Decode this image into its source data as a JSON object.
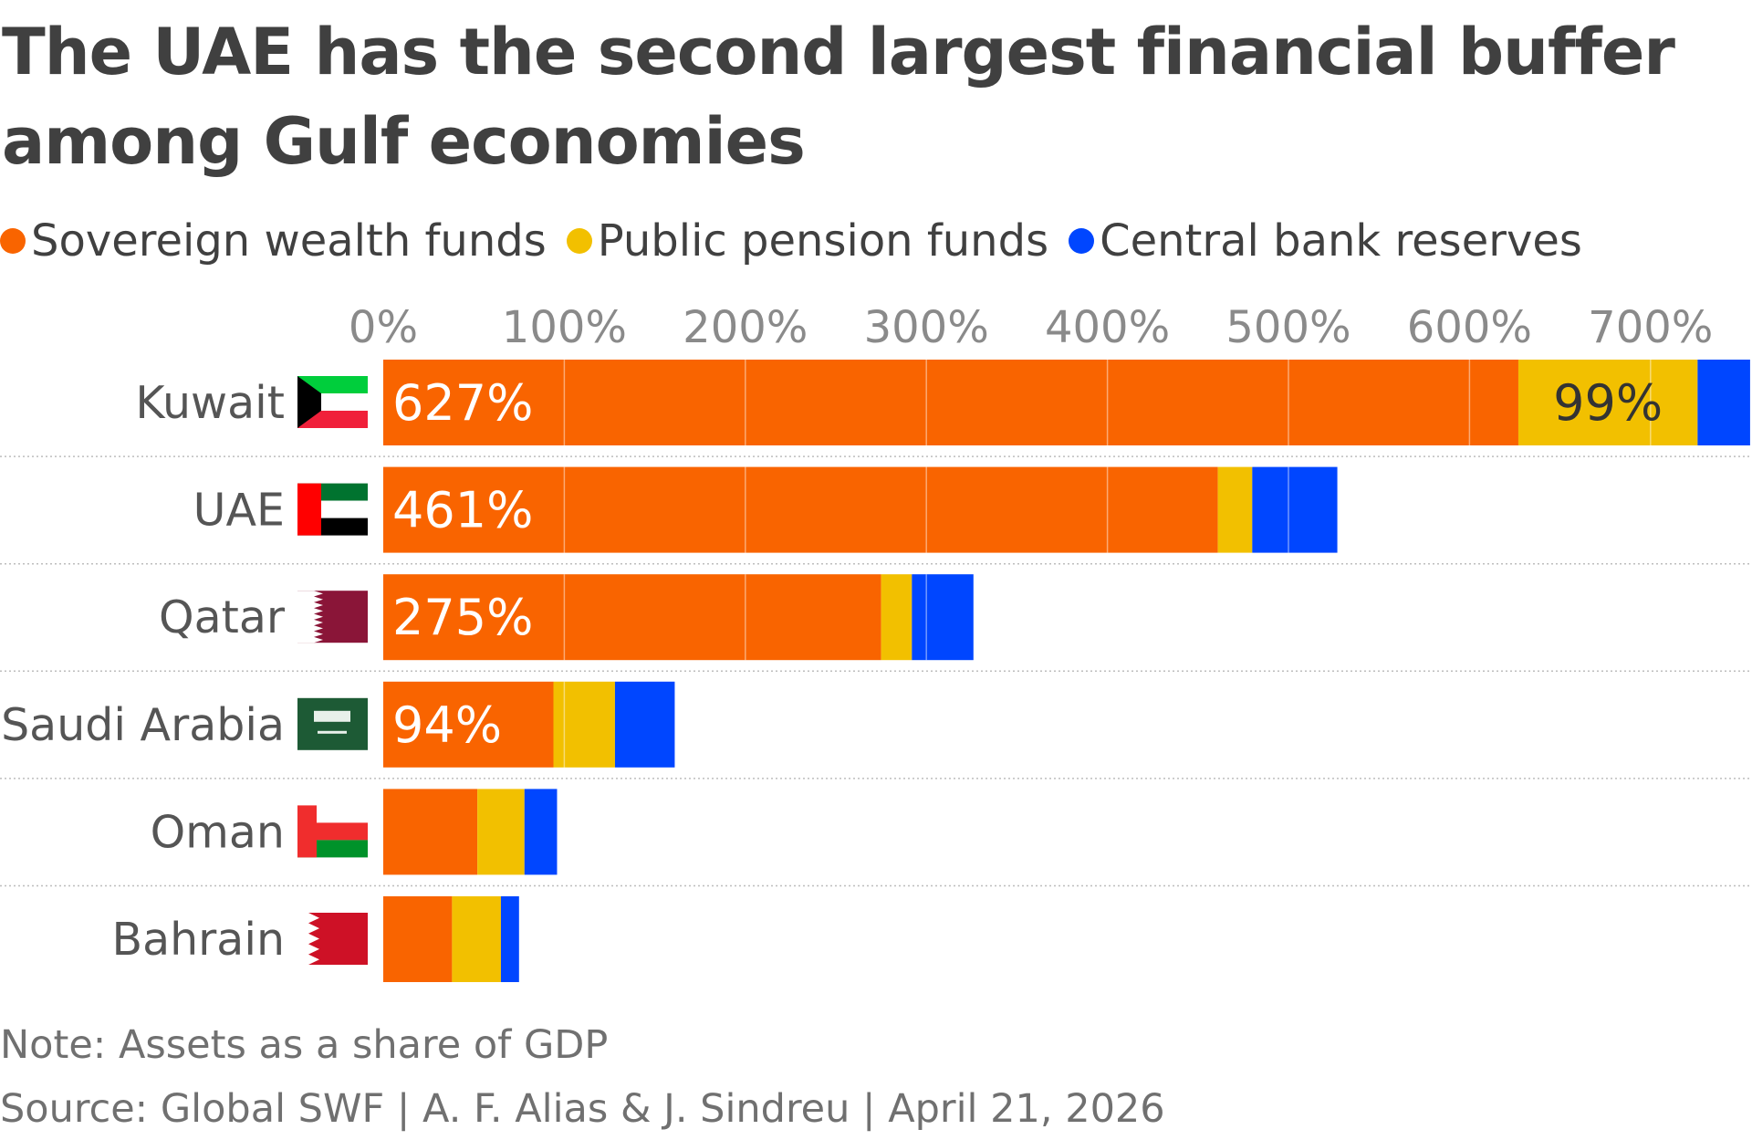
{
  "title": "The UAE has the second largest financial buffer among Gulf economies",
  "legend": [
    {
      "label": "Sovereign wealth funds",
      "color": "#f96400"
    },
    {
      "label": "Public pension funds",
      "color": "#f2c000"
    },
    {
      "label": "Central bank reserves",
      "color": "#0046ff"
    }
  ],
  "chart_data": {
    "type": "bar",
    "orientation": "horizontal",
    "stacked": true,
    "categories": [
      "Kuwait",
      "UAE",
      "Qatar",
      "Saudi Arabia",
      "Oman",
      "Bahrain"
    ],
    "series": [
      {
        "name": "Sovereign wealth funds",
        "color": "#f96400",
        "values": [
          627,
          461,
          275,
          94,
          52,
          38
        ]
      },
      {
        "name": "Public pension funds",
        "color": "#f2c000",
        "values": [
          99,
          19,
          17,
          34,
          26,
          27
        ]
      },
      {
        "name": "Central bank reserves",
        "color": "#0046ff",
        "values": [
          29,
          47,
          34,
          33,
          18,
          10
        ]
      }
    ],
    "data_labels": [
      {
        "category": "Kuwait",
        "series": "Sovereign wealth funds",
        "text": "627%"
      },
      {
        "category": "Kuwait",
        "series": "Public pension funds",
        "text": "99%"
      },
      {
        "category": "UAE",
        "series": "Sovereign wealth funds",
        "text": "461%"
      },
      {
        "category": "Qatar",
        "series": "Sovereign wealth funds",
        "text": "275%"
      },
      {
        "category": "Saudi Arabia",
        "series": "Sovereign wealth funds",
        "text": "94%"
      }
    ],
    "x_ticks": [
      "0%",
      "100%",
      "200%",
      "300%",
      "400%",
      "500%",
      "600%",
      "700%"
    ],
    "x_tick_values": [
      0,
      100,
      200,
      300,
      400,
      500,
      600,
      700
    ],
    "xlim": [
      0,
      755
    ],
    "xlabel": "",
    "ylabel": "",
    "grid": true,
    "legend_position": "top-left"
  },
  "note": "Note: Assets as a share of GDP",
  "source": "Source: Global SWF | A. F. Alias & J. Sindreu | April 21, 2026"
}
